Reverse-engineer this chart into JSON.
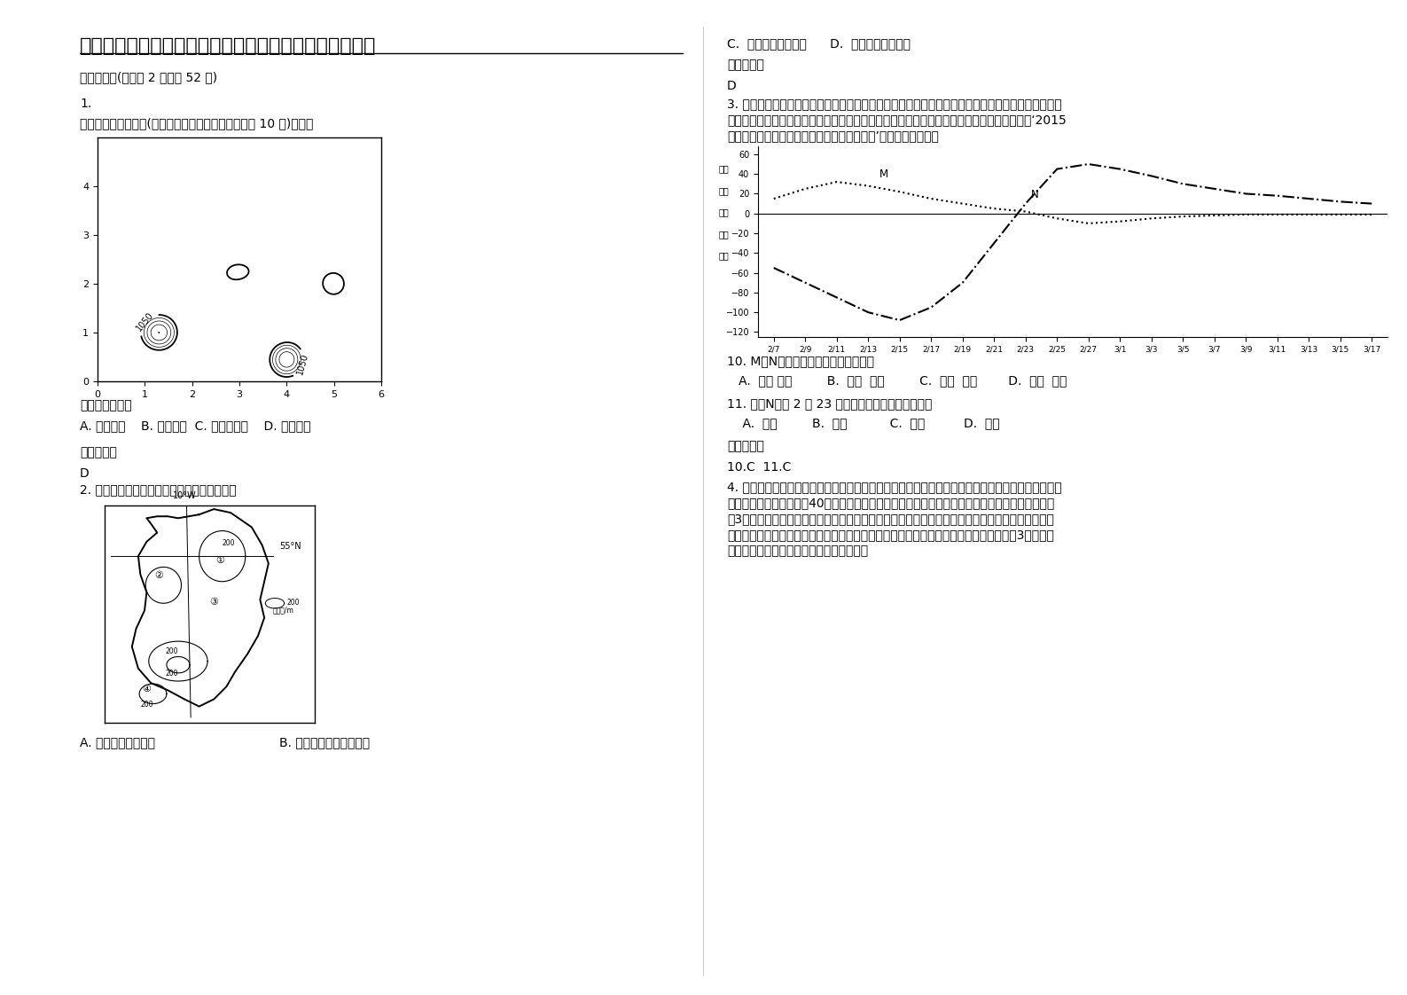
{
  "title": "河南省许昌市禹州文殊高级中学高三地理月考试题含解析",
  "section1": "一、选择题(每小题 2 分，共 52 分)",
  "q1_num": "1.",
  "q1_desc": "读某地等高线地形图(水平距离单位：千米，等高距为 10 米)，完成",
  "q1_area_label": "图示区域的位于",
  "q1_options": "A. 青藏高原    B. 江南丘陵  C. 内蒙古高原    D. 云贵高原",
  "q1_ans_label": "参考答案：",
  "q1_ans": "D",
  "q2_desc": "2. 右图为某岛等高线地形图，该岛所在的大洲",
  "q2_options_a": "A. 面积仅大于南极洲",
  "q2_options_b": "B. 地形以高原、平原为主",
  "q2_options_cd": "C.  海拔仅高于大洋洲      D.  西部内河航运发达",
  "q2_ans_label": "参考答案：",
  "q2_ans": "D",
  "q3_line1": "3. 春运是中国春节前后发生的一种由大规模人口流动导致的高交通运输压力现象，这种具有显著规律",
  "q3_line2": "性、高度集体性的社会行为的形成，与我国转型期的社会结构及独特的文化背景密切相关。读‘2015",
  "q3_line3": "年我国某两相邻省区春节前后流动人口统计图’，完成下列问题。",
  "chart_ylabel_chars": [
    "净流",
    "动人",
    "口数",
    "（万",
    "人）"
  ],
  "q10_text": "10. M、N曲线所表示的省区分别可能是",
  "q10_options": "   A.  江苏 安徽         B.  河南  北京         C.  广西  广东        D.  新疆  青海",
  "q11_text": "11. 影哊N省区 2 月 23 日之前人口流动的主要因素是",
  "q11_options": "    A.  经济         B.  宗教           C.  文化          D.  婚姻",
  "q11_ans_label": "参考答案：",
  "q11_ans": "10.C  11.C",
  "q4_line1": "4. 冰川融水带着泥土通过贝拉库勒河注入太平洋，在出海口遇到太平洋地热温泉，像永水一样滚，百",
  "q4_line2": "万年后，在海底形成了约40英亩细如案，柔似棉的冰川泥，是加拿大独有的美容护肤原料，每年只",
  "q4_line3": "有3个月开采期，专业人员必须乘坐直升机到达采集地点，截开冰层，潜水作业。将采集的泥土，密",
  "q4_line4": "封在专业器皌里，海运到加拿大南方的工厂透入一个高科技的生化加工过程。目前，只有3家企业获",
  "q4_line5": "得了限量开采权。读下图，完成下面小题。",
  "background_color": "#ffffff",
  "chart_dates": [
    "2/7",
    "2/9",
    "2/11",
    "2/13",
    "2/15",
    "2/17",
    "2/19",
    "2/21",
    "2/23",
    "2/25",
    "2/27",
    "3/1",
    "3/3",
    "3/5",
    "3/7",
    "3/9",
    "3/11",
    "3/13",
    "3/15",
    "3/17"
  ],
  "M_values": [
    15,
    25,
    32,
    28,
    22,
    15,
    10,
    5,
    2,
    -5,
    -10,
    -8,
    -5,
    -3,
    -2,
    -1,
    -1,
    -1,
    -1,
    -1
  ],
  "N_values": [
    -55,
    -70,
    -85,
    -100,
    -108,
    -95,
    -70,
    -30,
    10,
    45,
    50,
    45,
    38,
    30,
    25,
    20,
    18,
    15,
    12,
    10
  ],
  "font_size_title": 16,
  "font_size_body": 10,
  "font_size_small": 9
}
